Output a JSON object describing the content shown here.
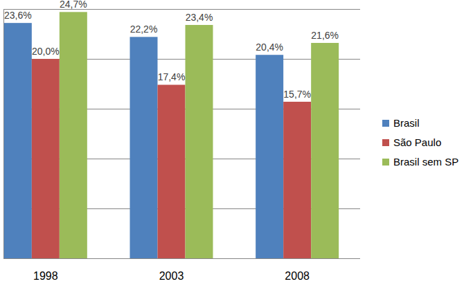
{
  "chart_data": {
    "type": "bar",
    "categories": [
      "1998",
      "2003",
      "2008"
    ],
    "series": [
      {
        "name": "Brasil",
        "color": "#4f81bd",
        "values": [
          23.6,
          22.2,
          20.4
        ],
        "value_labels": [
          "23,6%",
          "22,2%",
          "20,4%"
        ]
      },
      {
        "name": "São Paulo",
        "color": "#c0504d",
        "values": [
          20.0,
          17.4,
          15.7
        ],
        "value_labels": [
          "20,0%",
          "17,4%",
          "15,7%"
        ]
      },
      {
        "name": "Brasil sem SP",
        "color": "#9bbb59",
        "values": [
          24.7,
          23.4,
          21.6
        ],
        "value_labels": [
          "24,7%",
          "23,4%",
          "21,6%"
        ]
      }
    ],
    "ylim": [
      0,
      25
    ],
    "yticks": [
      0,
      5,
      10,
      15,
      20,
      25
    ],
    "grid": true,
    "legend": "right",
    "data_labels": true,
    "tick_labels": "x"
  }
}
